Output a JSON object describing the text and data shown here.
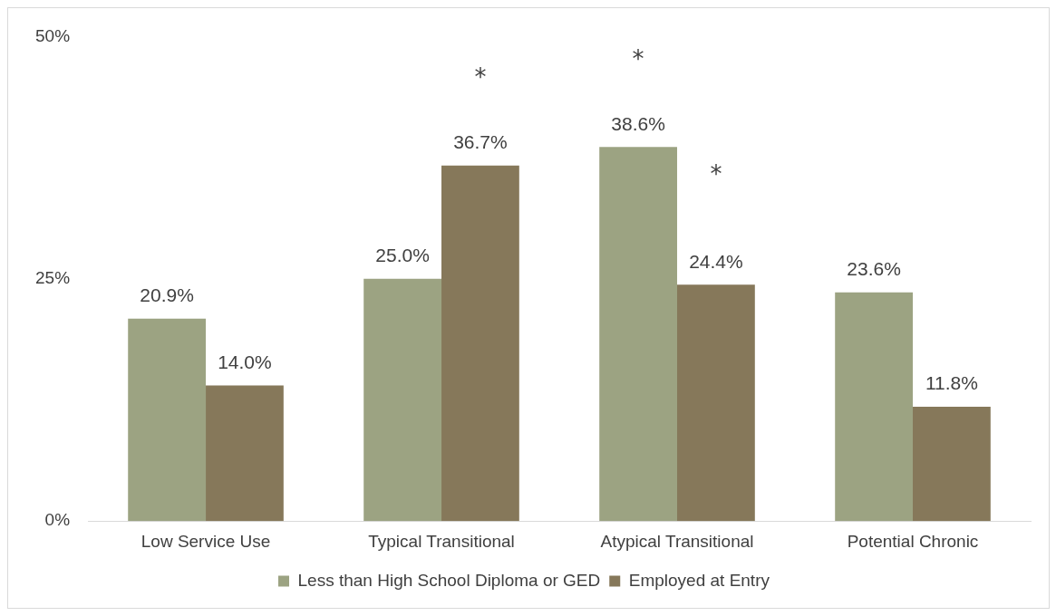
{
  "chart_data": {
    "type": "bar",
    "categories": [
      "Low Service Use",
      "Typical Transitional",
      "Atypical Transitional",
      "Potential Chronic"
    ],
    "series": [
      {
        "name": "Less than High School Diploma or GED",
        "color": "#9ca382",
        "values": [
          20.9,
          25.0,
          38.6,
          23.6
        ],
        "value_labels": [
          "20.9%",
          "25.0%",
          "38.6%",
          "23.6%"
        ]
      },
      {
        "name": "Employed at Entry",
        "color": "#86785a",
        "values": [
          14.0,
          36.7,
          24.4,
          11.8
        ],
        "value_labels": [
          "14.0%",
          "36.7%",
          "24.4%",
          "11.8%"
        ]
      }
    ],
    "ylim": [
      0,
      50
    ],
    "yticks": [
      {
        "value": 0,
        "label": "0%"
      },
      {
        "value": 25,
        "label": "25%"
      },
      {
        "value": 50,
        "label": "50%"
      }
    ],
    "grid": false,
    "legend": "bottom",
    "annotations": [
      "*",
      "*",
      "*"
    ]
  }
}
